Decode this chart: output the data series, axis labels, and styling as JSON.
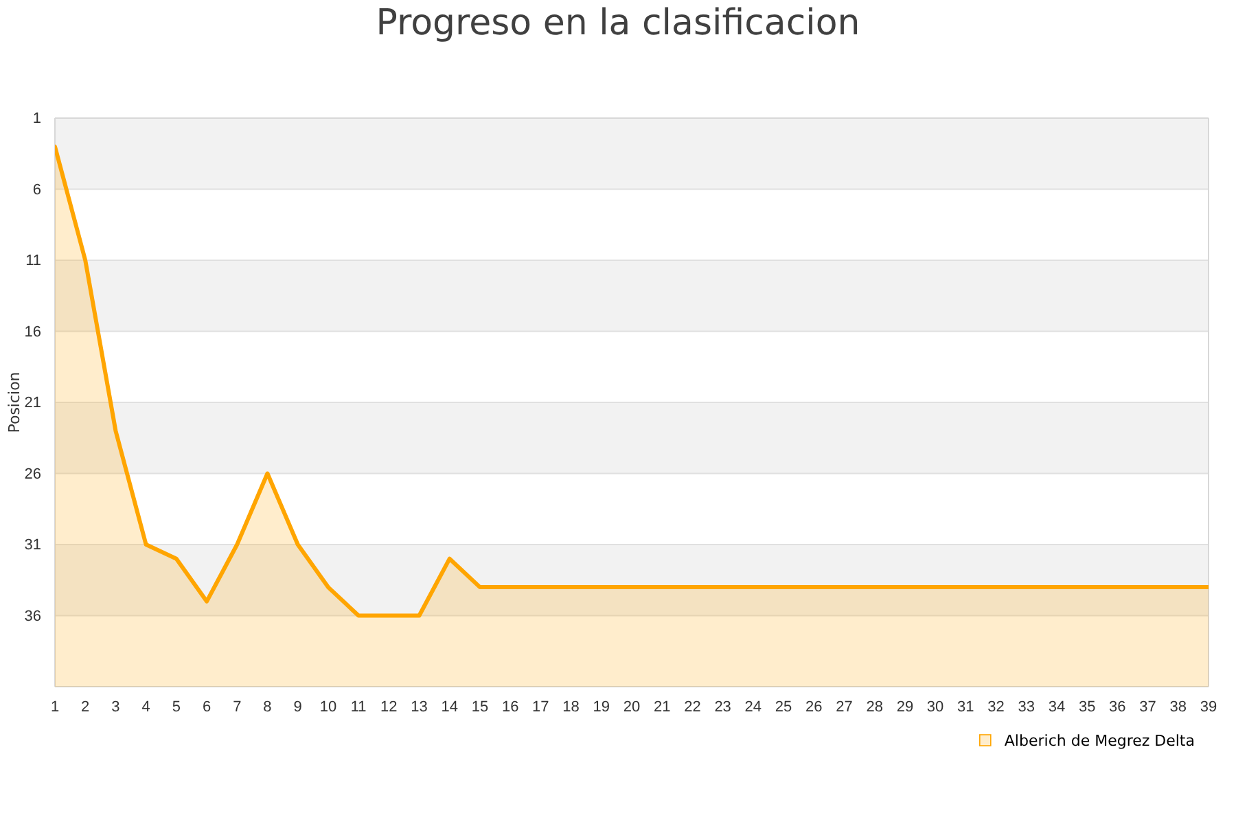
{
  "chart_data": {
    "type": "area",
    "title": "Progreso en la clasificacion",
    "ylabel": "Posicion",
    "x": [
      1,
      2,
      3,
      4,
      5,
      6,
      7,
      8,
      9,
      10,
      11,
      12,
      13,
      14,
      15,
      16,
      17,
      18,
      19,
      20,
      21,
      22,
      23,
      24,
      25,
      26,
      27,
      28,
      29,
      30,
      31,
      32,
      33,
      34,
      35,
      36,
      37,
      38,
      39
    ],
    "series": [
      {
        "name": "Alberich de Megrez Delta",
        "color": "#ffa500",
        "values": [
          3,
          11,
          23,
          31,
          32,
          35,
          31,
          26,
          31,
          34,
          36,
          36,
          36,
          32,
          34,
          34,
          34,
          34,
          34,
          34,
          34,
          34,
          34,
          34,
          34,
          34,
          34,
          34,
          34,
          34,
          34,
          34,
          34,
          34,
          34,
          34,
          34,
          34,
          34
        ]
      }
    ],
    "xlim": [
      1,
      39
    ],
    "xticks": [
      1,
      2,
      3,
      4,
      5,
      6,
      7,
      8,
      9,
      10,
      11,
      12,
      13,
      14,
      15,
      16,
      17,
      18,
      19,
      20,
      21,
      22,
      23,
      24,
      25,
      26,
      27,
      28,
      29,
      30,
      31,
      32,
      33,
      34,
      35,
      36,
      37,
      38,
      39
    ],
    "ylim": [
      41,
      1
    ],
    "yticks": [
      1,
      6,
      11,
      16,
      21,
      26,
      31,
      36
    ],
    "bands": [
      {
        "axis": "y",
        "from": 1,
        "to": 6,
        "color": "#f2f2f2"
      },
      {
        "axis": "y",
        "from": 11,
        "to": 16,
        "color": "#f2f2f2"
      },
      {
        "axis": "y",
        "from": 21,
        "to": 26,
        "color": "#f2f2f2"
      },
      {
        "axis": "y",
        "from": 31,
        "to": 36,
        "color": "#f2f2f2"
      }
    ],
    "grid": "y",
    "legend": "bottom right",
    "line_style": "solid"
  }
}
